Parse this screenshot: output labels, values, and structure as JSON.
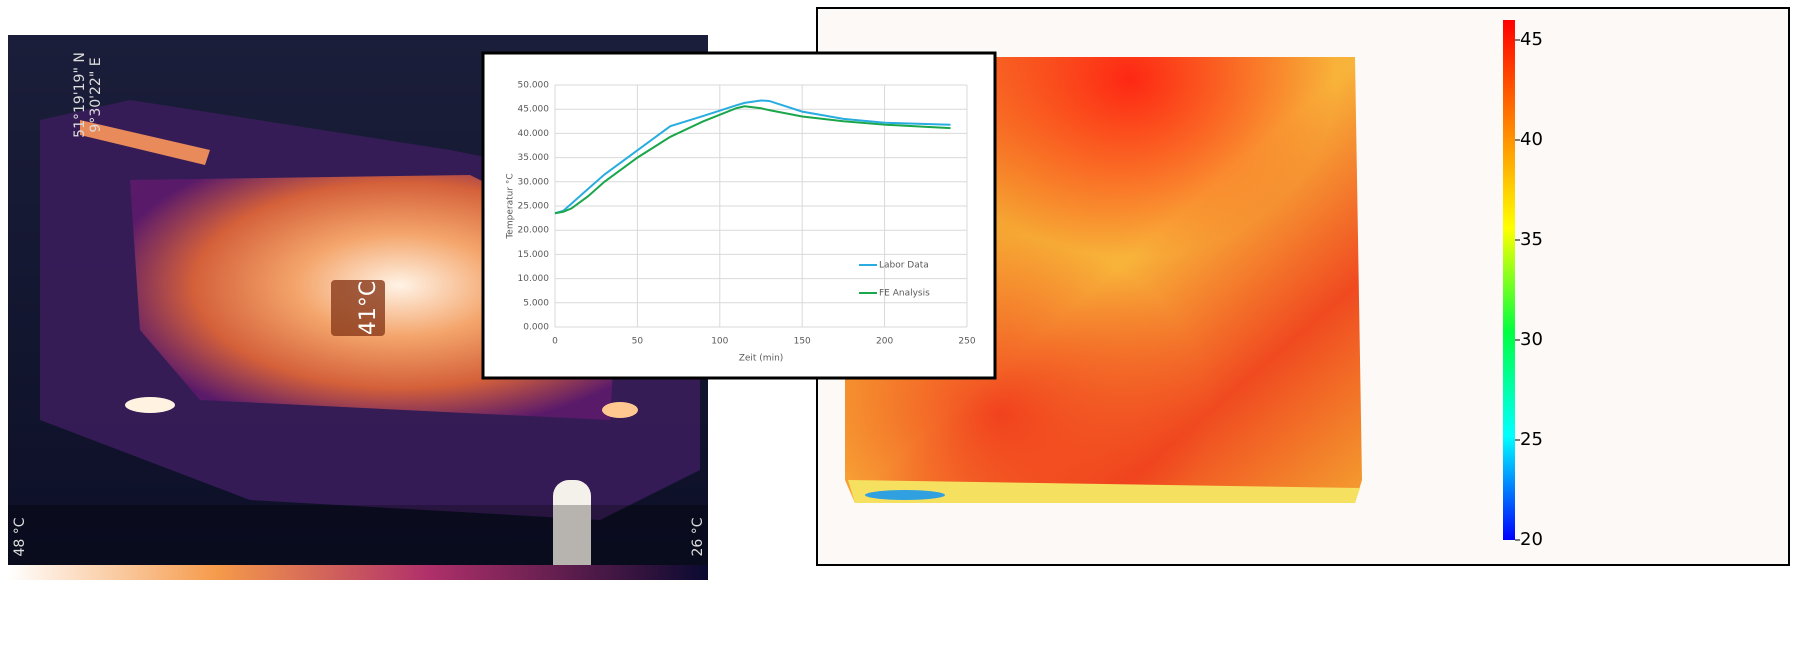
{
  "thermal_image": {
    "coordinates": [
      "51°19'19\" N",
      "9°30'22\" E"
    ],
    "spot_reading": "41°C",
    "scale_max": "48 °C",
    "scale_min": "26 °C"
  },
  "chart_data": [
    {
      "type": "line",
      "x_label": "Zeit (min)",
      "y_label": "Temperatur °C",
      "x": [
        0,
        5,
        10,
        20,
        30,
        50,
        70,
        90,
        110,
        115,
        125,
        130,
        150,
        175,
        200,
        240
      ],
      "series": [
        {
          "name": "Labor Data",
          "color": "#29ace0",
          "values": [
            23.5,
            24,
            25.5,
            28.5,
            31.5,
            36.5,
            41.5,
            43.6,
            45.8,
            46.3,
            46.8,
            46.7,
            44.5,
            43,
            42.2,
            41.8
          ]
        },
        {
          "name": "FE Analysis",
          "color": "#1aa64a",
          "values": [
            23.5,
            23.8,
            24.5,
            27,
            30,
            35,
            39.3,
            42.5,
            45.2,
            45.6,
            45.2,
            44.8,
            43.5,
            42.5,
            41.8,
            41.1
          ]
        }
      ],
      "xlim": [
        0,
        250
      ],
      "xticks": [
        0,
        50,
        100,
        150,
        200,
        250
      ],
      "ylim": [
        0,
        50
      ],
      "yticks": [
        {
          "value": 0,
          "label": "0.000"
        },
        {
          "value": 5,
          "label": "5.000"
        },
        {
          "value": 10,
          "label": "10.000"
        },
        {
          "value": 15,
          "label": "15.000"
        },
        {
          "value": 20,
          "label": "20.000"
        },
        {
          "value": 25,
          "label": "25.000"
        },
        {
          "value": 30,
          "label": "30.000"
        },
        {
          "value": 35,
          "label": "35.000"
        },
        {
          "value": 40,
          "label": "40.000"
        },
        {
          "value": 45,
          "label": "45.000"
        },
        {
          "value": 50,
          "label": "50.000"
        }
      ],
      "grid": true,
      "legend": "lower-right"
    },
    {
      "type": "colorbar",
      "ylim": [
        20,
        46
      ],
      "yticks": [
        20,
        25,
        30,
        35,
        40,
        45
      ],
      "colors": [
        "#0000ff",
        "#00ffff",
        "#00ff40",
        "#ffff00",
        "#ff8000",
        "#ff0000"
      ]
    }
  ]
}
